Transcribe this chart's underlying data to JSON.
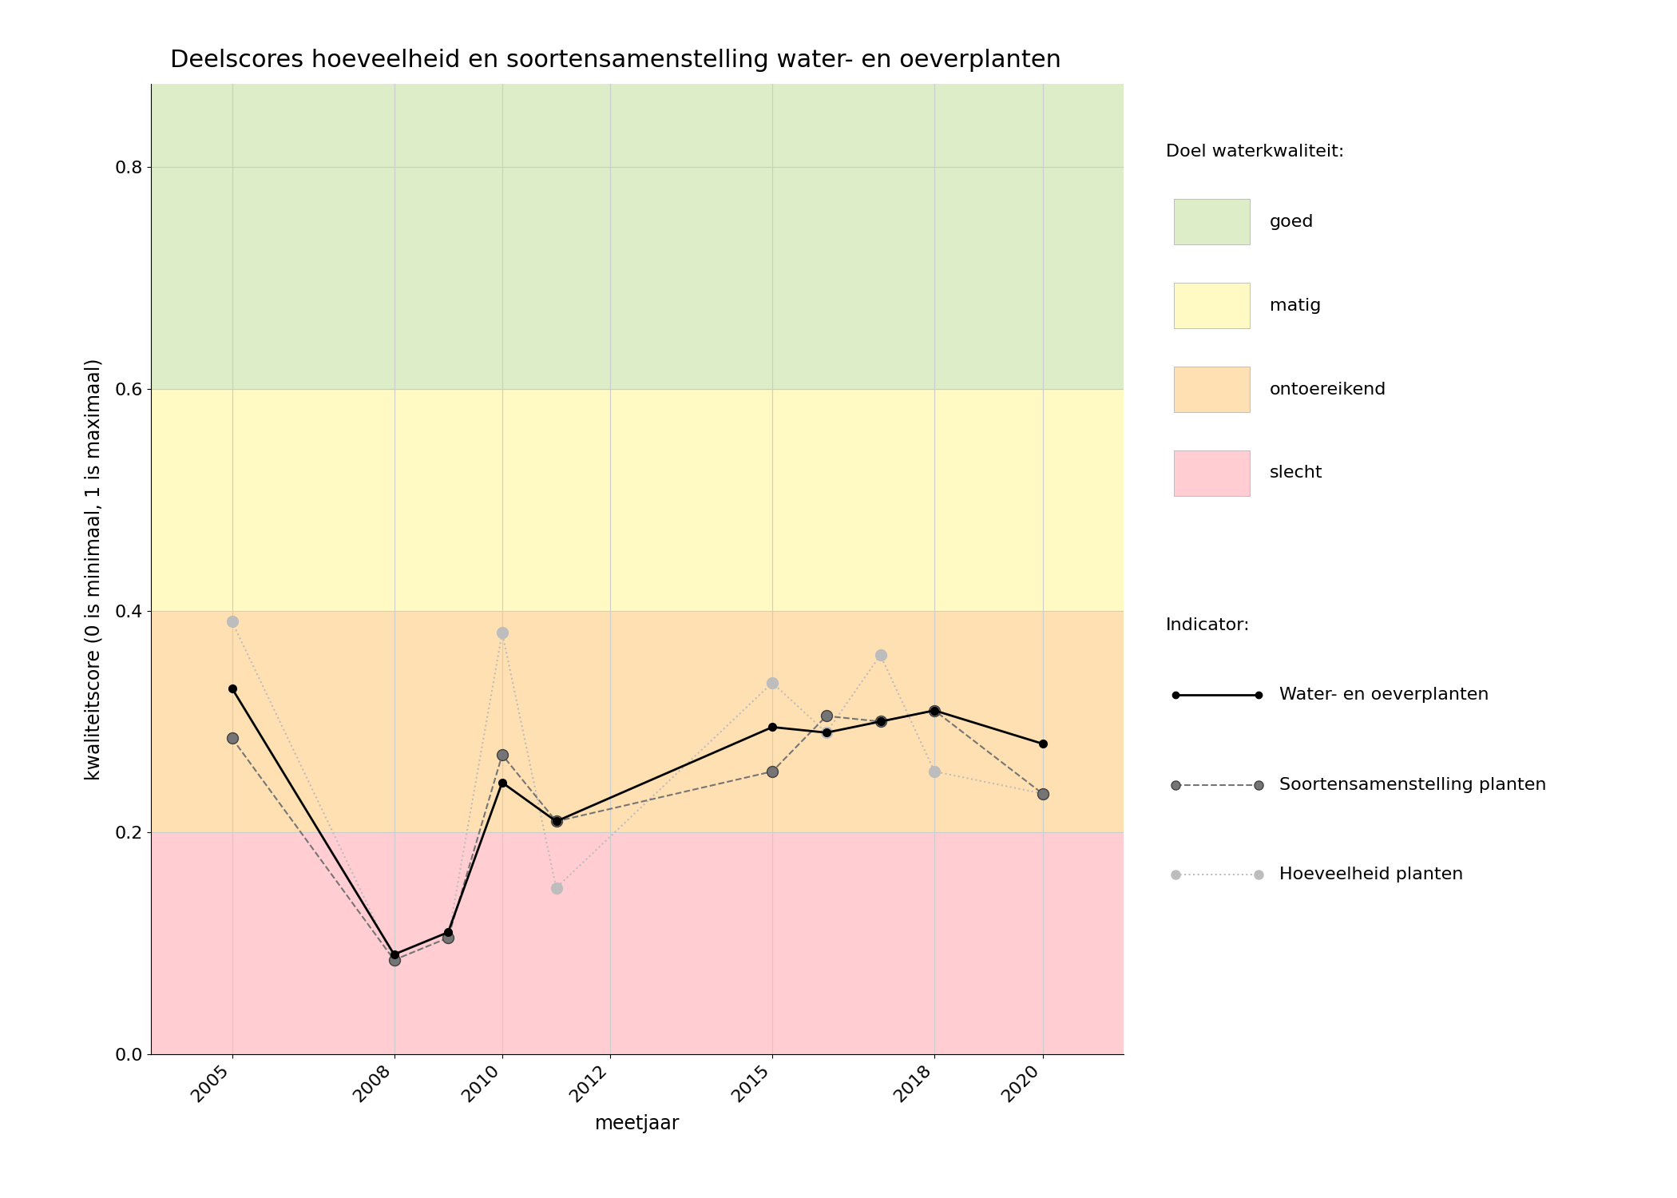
{
  "title": "Deelscores hoeveelheid en soortensamenstelling water- en oeverplanten",
  "xlabel": "meetjaar",
  "ylabel": "kwaliteitscore (0 is minimaal, 1 is maximaal)",
  "xlim": [
    2003.5,
    2021.5
  ],
  "ylim": [
    0.0,
    0.875
  ],
  "yticks": [
    0.0,
    0.2,
    0.4,
    0.6,
    0.8
  ],
  "xticks": [
    2005,
    2008,
    2010,
    2012,
    2015,
    2018,
    2020
  ],
  "bg_bands": [
    {
      "ymin": 0.0,
      "ymax": 0.2,
      "color": "#ffcdd2",
      "label": "slecht"
    },
    {
      "ymin": 0.2,
      "ymax": 0.4,
      "color": "#ffe0b2",
      "label": "ontoereikend"
    },
    {
      "ymin": 0.4,
      "ymax": 0.6,
      "color": "#fff9c4",
      "label": "matig"
    },
    {
      "ymin": 0.6,
      "ymax": 0.875,
      "color": "#dcedc8",
      "label": "goed"
    }
  ],
  "water_oever": {
    "years": [
      2005,
      2008,
      2009,
      2010,
      2011,
      2015,
      2016,
      2017,
      2018,
      2020
    ],
    "values": [
      0.33,
      0.09,
      0.11,
      0.245,
      0.21,
      0.295,
      0.29,
      0.3,
      0.31,
      0.28
    ],
    "color": "#000000",
    "linestyle": "-",
    "linewidth": 2.0,
    "marker": "o",
    "markersize": 7,
    "label": "Water- en oeverplanten"
  },
  "soortensamenstelling": {
    "years": [
      2005,
      2008,
      2009,
      2010,
      2011,
      2015,
      2016,
      2017,
      2018,
      2020
    ],
    "values": [
      0.285,
      0.085,
      0.105,
      0.27,
      0.21,
      0.255,
      0.305,
      0.3,
      0.31,
      0.235
    ],
    "color": "#757575",
    "linestyle": "--",
    "linewidth": 1.5,
    "marker": "o",
    "markersize": 10,
    "label": "Soortensamenstelling planten"
  },
  "hoeveelheid": {
    "years": [
      2005,
      2008,
      2009,
      2010,
      2011,
      2015,
      2016,
      2017,
      2018,
      2020
    ],
    "values": [
      0.39,
      0.085,
      0.105,
      0.38,
      0.15,
      0.335,
      0.29,
      0.36,
      0.255,
      0.235
    ],
    "color": "#bdbdbd",
    "linestyle": ":",
    "linewidth": 1.5,
    "marker": "o",
    "markersize": 10,
    "label": "Hoeveelheid planten"
  },
  "legend_quality_title": "Doel waterkwaliteit:",
  "legend_indicator_title": "Indicator:",
  "legend_quality_items": [
    {
      "label": "goed",
      "color": "#dcedc8"
    },
    {
      "label": "matig",
      "color": "#fff9c4"
    },
    {
      "label": "ontoereikend",
      "color": "#ffe0b2"
    },
    {
      "label": "slecht",
      "color": "#ffcdd2"
    }
  ],
  "figure_bg": "#ffffff",
  "grid_color": "#cccccc",
  "grid_linewidth": 0.8,
  "title_fontsize": 22,
  "axis_label_fontsize": 17,
  "tick_fontsize": 16,
  "legend_fontsize": 16
}
